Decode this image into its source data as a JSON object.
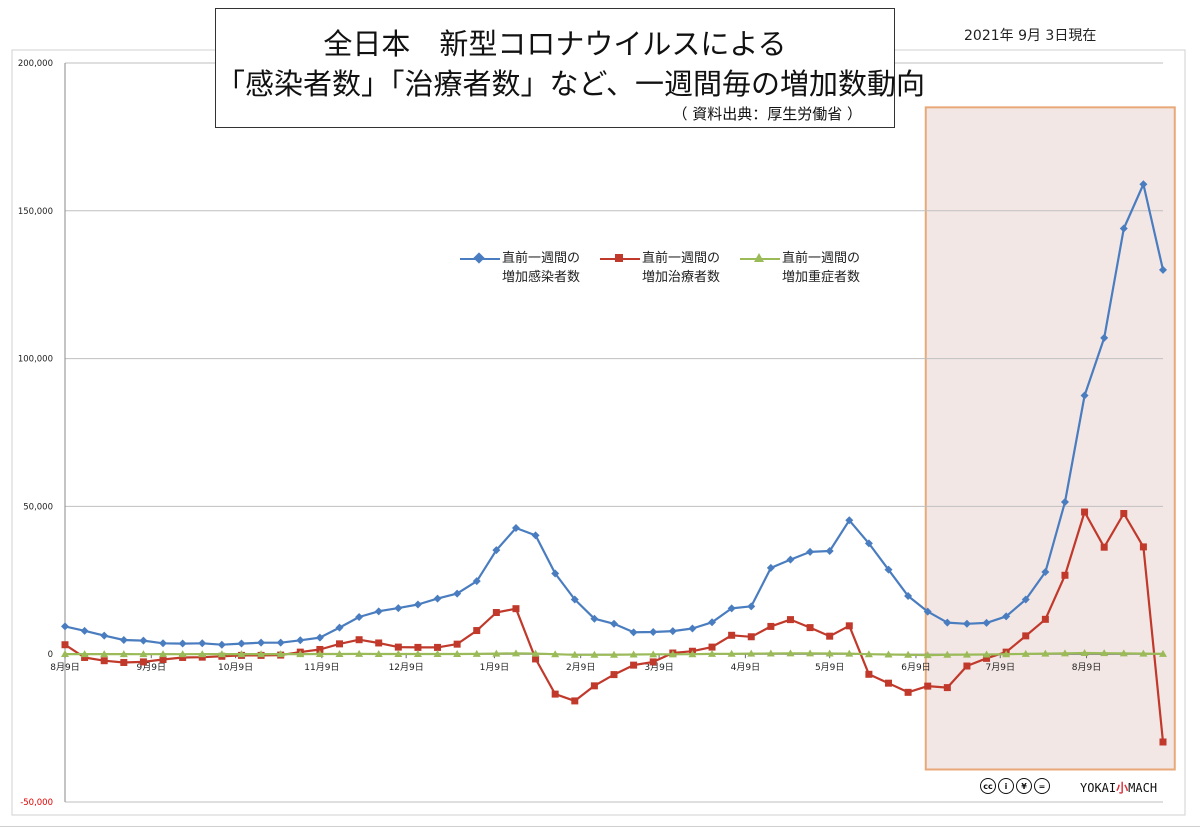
{
  "header": {
    "title_line1": "全日本　新型コロナウイルスによる",
    "title_line2": "「感染者数」「治療者数」など、一週間毎の増加数動向",
    "source_note": "（ 資料出典：厚生労働省 ）",
    "as_of": "2021年 9月 3日現在"
  },
  "branding": {
    "cc_icons": [
      "cc-icon",
      "by-icon",
      "nc-icon",
      "nd-icon"
    ],
    "cc_glyphs": [
      "cc",
      "i",
      "¥",
      "="
    ],
    "brand_left": "YOKAI",
    "brand_mid": "小",
    "brand_right": "MACH"
  },
  "colors": {
    "infected": "#4a7dbf",
    "treatment": "#c0392b",
    "severe": "#9bbb59",
    "highlight_border": "#e8a878",
    "highlight_fill": "#f3e7e6",
    "grid": "#bfbfbf",
    "negative_tick": "#e00000"
  },
  "chart_data": {
    "type": "line",
    "title": "",
    "xlabel": "",
    "ylabel": "",
    "ylim": [
      -50000,
      200000
    ],
    "y_ticks": [
      -50000,
      0,
      50000,
      100000,
      150000,
      200000
    ],
    "y_tick_labels": [
      "-50,000",
      "0",
      "50,000",
      "100,000",
      "150,000",
      "200,000"
    ],
    "grid": true,
    "legend_position": "top-center",
    "x_index_range": [
      0,
      56
    ],
    "x_tick_labels": [
      {
        "index": 0,
        "label": "8月9日"
      },
      {
        "index": 4.4,
        "label": "9月9日"
      },
      {
        "index": 8.7,
        "label": "10月9日"
      },
      {
        "index": 13.1,
        "label": "11月9日"
      },
      {
        "index": 17.4,
        "label": "12月9日"
      },
      {
        "index": 21.9,
        "label": "1月9日"
      },
      {
        "index": 26.3,
        "label": "2月9日"
      },
      {
        "index": 30.3,
        "label": "3月9日"
      },
      {
        "index": 34.7,
        "label": "4月9日"
      },
      {
        "index": 39,
        "label": "5月9日"
      },
      {
        "index": 43.4,
        "label": "6月9日"
      },
      {
        "index": 47.7,
        "label": "7月9日"
      },
      {
        "index": 52.1,
        "label": "8月9日"
      }
    ],
    "highlight_range": {
      "from_index": 43.9,
      "to_index": 56.6,
      "y_top": 185000,
      "y_bottom": -39000
    },
    "series": [
      {
        "name": "直前一週間の\n増加感染者数",
        "marker": "diamond",
        "values": [
          9400,
          7900,
          6300,
          4800,
          4600,
          3700,
          3600,
          3700,
          3200,
          3600,
          3900,
          3900,
          4700,
          5600,
          9000,
          12600,
          14500,
          15600,
          16800,
          18800,
          20500,
          24700,
          35200,
          42700,
          40200,
          27300,
          18500,
          12000,
          10300,
          7400,
          7500,
          7800,
          8700,
          10800,
          15500,
          16200,
          29200,
          32000,
          34600,
          34900,
          45300,
          37500,
          28600,
          19700,
          14400,
          10700,
          10300,
          10600,
          12800,
          18500,
          27800,
          51500,
          87500,
          107000,
          144000,
          159000,
          130000
        ]
      },
      {
        "name": "直前一週間の\n増加治療者数",
        "marker": "square",
        "values": [
          3200,
          -1100,
          -2200,
          -2800,
          -2600,
          -1800,
          -1100,
          -1000,
          -700,
          -400,
          -400,
          -300,
          700,
          1600,
          3500,
          4900,
          3800,
          2400,
          2300,
          2300,
          3400,
          8000,
          14100,
          15400,
          -1600,
          -13500,
          -15800,
          -10700,
          -6900,
          -3700,
          -2600,
          400,
          1000,
          2400,
          6400,
          5900,
          9400,
          11700,
          9000,
          6100,
          9600,
          -6800,
          -9800,
          -12900,
          -10800,
          -11300,
          -4000,
          -1400,
          700,
          6200,
          11800,
          26700,
          48100,
          36200,
          47600,
          36300,
          -29700
        ]
      },
      {
        "name": "直前一週間の\n増加重症者数",
        "marker": "triangle",
        "values": [
          50,
          40,
          20,
          20,
          10,
          20,
          10,
          20,
          30,
          20,
          20,
          40,
          40,
          60,
          80,
          90,
          80,
          60,
          60,
          60,
          80,
          100,
          200,
          300,
          200,
          0,
          -200,
          -200,
          -200,
          -100,
          -50,
          -50,
          0,
          100,
          150,
          200,
          250,
          300,
          300,
          250,
          200,
          0,
          -100,
          -200,
          -300,
          -200,
          -150,
          -100,
          0,
          100,
          200,
          300,
          400,
          350,
          300,
          200,
          100
        ]
      }
    ]
  }
}
